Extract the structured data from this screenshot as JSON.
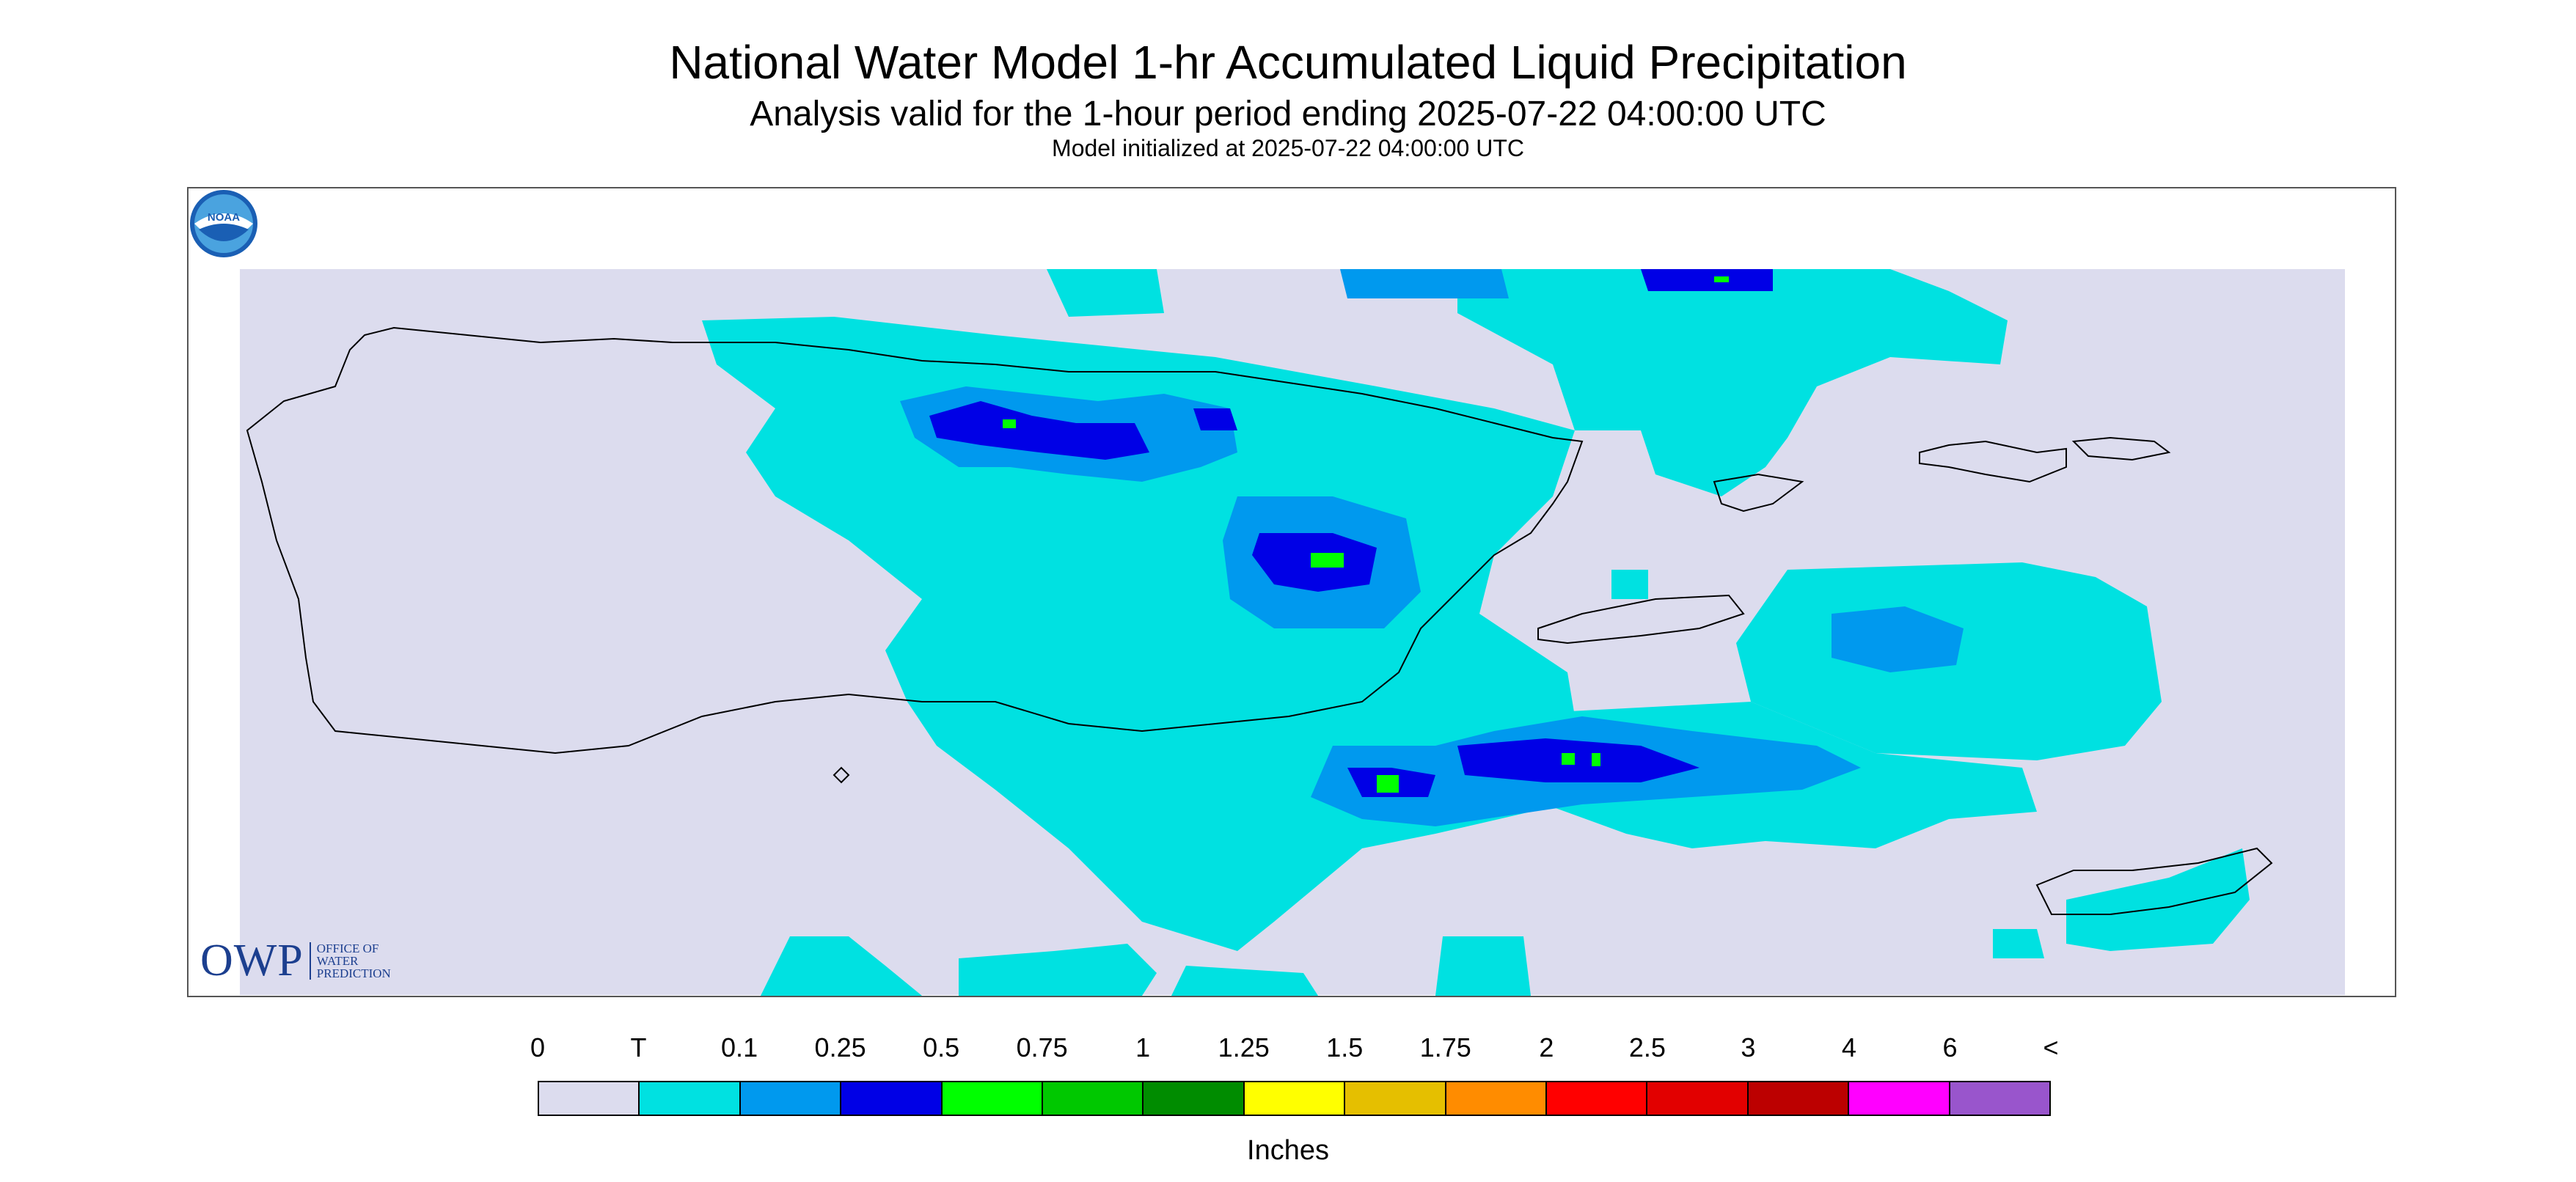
{
  "header": {
    "title": "National Water Model 1-hr Accumulated Liquid Precipitation",
    "subtitle": "Analysis valid for the 1-hour period ending 2025-07-22 04:00:00 UTC",
    "init": "Model initialized at 2025-07-22 04:00:00 UTC"
  },
  "map": {
    "background_color": "#dcdcee",
    "coast_color": "#000000",
    "owp_logo": {
      "big": "OWP",
      "line1": "OFFICE OF",
      "line2": "WATER",
      "line3": "PREDICTION"
    },
    "noaa_logo": "NOAA"
  },
  "legend": {
    "labels": [
      "0",
      "T",
      "0.1",
      "0.25",
      "0.5",
      "0.75",
      "1",
      "1.25",
      "1.5",
      "1.75",
      "2",
      "2.5",
      "3",
      "4",
      "6",
      "<"
    ],
    "colors": [
      "#dcdcee",
      "#00e1e1",
      "#0099ee",
      "#0000e6",
      "#00ff00",
      "#00c800",
      "#008c00",
      "#ffff00",
      "#e5bf00",
      "#ff8c00",
      "#ff0000",
      "#e20000",
      "#bc0000",
      "#ff00ff",
      "#9955cc"
    ],
    "units": "Inches"
  }
}
